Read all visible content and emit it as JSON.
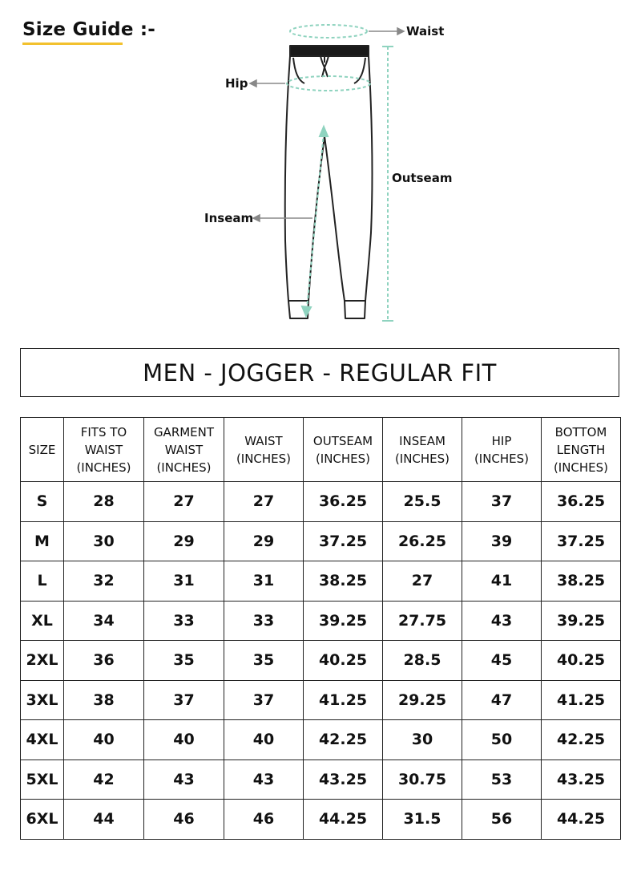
{
  "header": {
    "title": "Size Guide :-"
  },
  "diagram": {
    "labels": {
      "waist": "Waist",
      "hip": "Hip",
      "outseam": "Outseam",
      "inseam": "Inseam"
    },
    "colors": {
      "guide": "#8fd3bf",
      "arrow": "#888888",
      "outline": "#222222"
    }
  },
  "table_title": "MEN - JOGGER - REGULAR FIT",
  "table": {
    "headers": [
      "SIZE",
      "FITS TO\nWAIST\n(INCHES)",
      "GARMENT\nWAIST\n(INCHES)",
      "WAIST\n(INCHES)",
      "OUTSEAM\n(INCHES)",
      "INSEAM\n(INCHES)",
      "HIP\n(INCHES)",
      "BOTTOM\nLENGTH\n(INCHES)"
    ],
    "rows": [
      [
        "S",
        "28",
        "27",
        "27",
        "36.25",
        "25.5",
        "37",
        "36.25"
      ],
      [
        "M",
        "30",
        "29",
        "29",
        "37.25",
        "26.25",
        "39",
        "37.25"
      ],
      [
        "L",
        "32",
        "31",
        "31",
        "38.25",
        "27",
        "41",
        "38.25"
      ],
      [
        "XL",
        "34",
        "33",
        "33",
        "39.25",
        "27.75",
        "43",
        "39.25"
      ],
      [
        "2XL",
        "36",
        "35",
        "35",
        "40.25",
        "28.5",
        "45",
        "40.25"
      ],
      [
        "3XL",
        "38",
        "37",
        "37",
        "41.25",
        "29.25",
        "47",
        "41.25"
      ],
      [
        "4XL",
        "40",
        "40",
        "40",
        "42.25",
        "30",
        "50",
        "42.25"
      ],
      [
        "5XL",
        "42",
        "43",
        "43",
        "43.25",
        "30.75",
        "53",
        "43.25"
      ],
      [
        "6XL",
        "44",
        "46",
        "46",
        "44.25",
        "31.5",
        "56",
        "44.25"
      ]
    ]
  }
}
